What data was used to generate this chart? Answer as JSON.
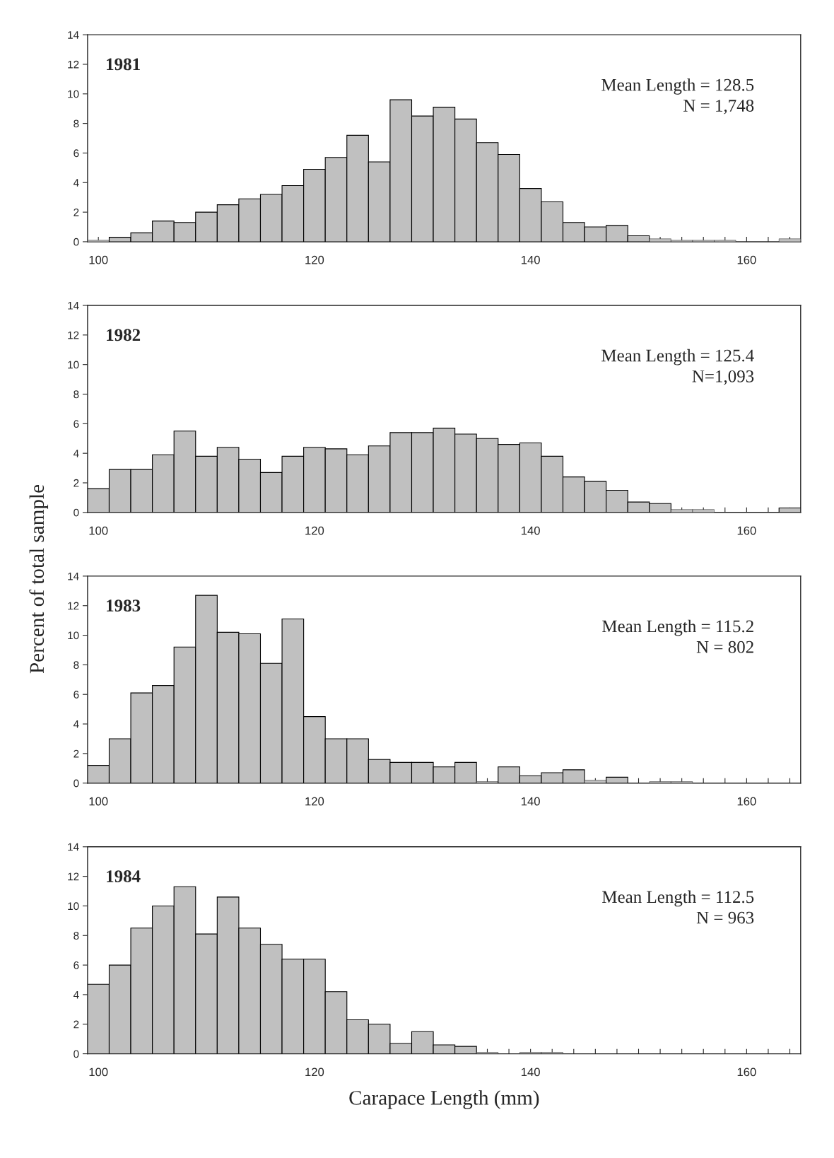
{
  "chart_data": [
    {
      "type": "histogram",
      "title": "1981",
      "annotations": [
        "Mean Length = 128.5",
        "N = 1,748"
      ],
      "bins": [
        99,
        101,
        103,
        105,
        107,
        109,
        111,
        113,
        115,
        117,
        119,
        121,
        123,
        125,
        127,
        129,
        131,
        133,
        135,
        137,
        139,
        141,
        143,
        145,
        147,
        149,
        151,
        153,
        155,
        157,
        159,
        161,
        163,
        165
      ],
      "values": [
        0.1,
        0.3,
        0.6,
        1.4,
        1.3,
        2.0,
        2.5,
        2.9,
        3.2,
        3.8,
        4.9,
        5.7,
        7.2,
        5.4,
        9.6,
        8.5,
        9.1,
        8.3,
        6.7,
        5.9,
        3.6,
        2.7,
        1.3,
        1.0,
        1.1,
        0.4,
        0.2,
        0.1,
        0.1,
        0.1,
        0,
        0,
        0.2
      ],
      "color": "#c0c0c0",
      "xlim": [
        99,
        165
      ],
      "ylim": [
        0,
        14
      ],
      "yticks": [
        0,
        2,
        4,
        6,
        8,
        10,
        12,
        14
      ],
      "xticks": [
        100,
        {
          "value": 102,
          "label": null
        },
        {
          "value": 104,
          "label": null
        },
        {
          "value": 106,
          "label": null
        },
        {
          "value": 108,
          "label": null
        },
        {
          "value": 110,
          "label": null
        },
        {
          "value": 112,
          "label": null
        },
        {
          "value": 114,
          "label": null
        },
        {
          "value": 116,
          "label": null
        },
        {
          "value": 118,
          "label": null
        },
        120,
        {
          "value": 122,
          "label": null
        },
        {
          "value": 124,
          "label": null
        },
        {
          "value": 126,
          "label": null
        },
        {
          "value": 128,
          "label": null
        },
        {
          "value": 130,
          "label": null
        },
        {
          "value": 132,
          "label": null
        },
        {
          "value": 134,
          "label": null
        },
        {
          "value": 136,
          "label": null
        },
        {
          "value": 138,
          "label": null
        },
        140,
        {
          "value": 142,
          "label": null
        },
        {
          "value": 144,
          "label": null
        },
        {
          "value": 146,
          "label": null
        },
        {
          "value": 148,
          "label": null
        },
        {
          "value": 150,
          "label": null
        },
        {
          "value": 152,
          "label": null
        },
        {
          "value": 154,
          "label": null
        },
        {
          "value": 156,
          "label": null
        },
        {
          "value": 158,
          "label": null
        },
        160,
        {
          "value": 162,
          "label": null
        },
        {
          "value": 164,
          "label": null
        }
      ],
      "grid": false,
      "legend": false
    },
    {
      "type": "histogram",
      "title": "1982",
      "annotations": [
        "Mean Length = 125.4",
        "N=1,093"
      ],
      "bins": [
        99,
        101,
        103,
        105,
        107,
        109,
        111,
        113,
        115,
        117,
        119,
        121,
        123,
        125,
        127,
        129,
        131,
        133,
        135,
        137,
        139,
        141,
        143,
        145,
        147,
        149,
        151,
        153,
        155,
        157,
        159,
        161,
        163,
        165
      ],
      "values": [
        1.6,
        2.9,
        2.9,
        3.9,
        5.5,
        3.8,
        4.4,
        3.6,
        2.7,
        3.8,
        4.4,
        4.3,
        3.9,
        4.5,
        5.4,
        5.4,
        5.7,
        5.3,
        5.0,
        4.6,
        4.7,
        3.8,
        2.4,
        2.1,
        1.5,
        0.7,
        0.6,
        0.2,
        0.2,
        0,
        0,
        0,
        0.3
      ],
      "color": "#c0c0c0",
      "xlim": [
        99,
        165
      ],
      "ylim": [
        0,
        14
      ],
      "yticks": [
        0,
        2,
        4,
        6,
        8,
        10,
        12,
        14
      ],
      "xticks": [
        100,
        {
          "value": 102,
          "label": null
        },
        {
          "value": 104,
          "label": null
        },
        {
          "value": 106,
          "label": null
        },
        {
          "value": 108,
          "label": null
        },
        {
          "value": 110,
          "label": null
        },
        {
          "value": 112,
          "label": null
        },
        {
          "value": 114,
          "label": null
        },
        {
          "value": 116,
          "label": null
        },
        {
          "value": 118,
          "label": null
        },
        120,
        {
          "value": 122,
          "label": null
        },
        {
          "value": 124,
          "label": null
        },
        {
          "value": 126,
          "label": null
        },
        {
          "value": 128,
          "label": null
        },
        {
          "value": 130,
          "label": null
        },
        {
          "value": 132,
          "label": null
        },
        {
          "value": 134,
          "label": null
        },
        {
          "value": 136,
          "label": null
        },
        {
          "value": 138,
          "label": null
        },
        140,
        {
          "value": 142,
          "label": null
        },
        {
          "value": 144,
          "label": null
        },
        {
          "value": 146,
          "label": null
        },
        {
          "value": 148,
          "label": null
        },
        {
          "value": 150,
          "label": null
        },
        {
          "value": 152,
          "label": null
        },
        {
          "value": 154,
          "label": null
        },
        {
          "value": 156,
          "label": null
        },
        {
          "value": 158,
          "label": null
        },
        160,
        {
          "value": 162,
          "label": null
        },
        {
          "value": 164,
          "label": null
        }
      ],
      "grid": false,
      "legend": false
    },
    {
      "type": "histogram",
      "title": "1983",
      "ylabel": "Percent of total sample",
      "annotations": [
        "Mean Length = 115.2",
        "N = 802"
      ],
      "bins": [
        99,
        101,
        103,
        105,
        107,
        109,
        111,
        113,
        115,
        117,
        119,
        121,
        123,
        125,
        127,
        129,
        131,
        133,
        135,
        137,
        139,
        141,
        143,
        145,
        147,
        149,
        151,
        153,
        155,
        157,
        159,
        161,
        163,
        165
      ],
      "values": [
        1.2,
        3.0,
        6.1,
        6.6,
        9.2,
        12.7,
        10.2,
        10.1,
        8.1,
        11.1,
        4.5,
        3.0,
        3.0,
        1.6,
        1.4,
        1.4,
        1.1,
        1.4,
        0.1,
        1.1,
        0.5,
        0.7,
        0.9,
        0.2,
        0.4,
        0,
        0.1,
        0.1,
        0,
        0,
        0,
        0,
        0
      ],
      "color": "#c0c0c0",
      "xlim": [
        99,
        165
      ],
      "ylim": [
        0,
        14
      ],
      "yticks": [
        0,
        2,
        4,
        6,
        8,
        10,
        12,
        14
      ],
      "xticks": [
        100,
        {
          "value": 102,
          "label": null
        },
        {
          "value": 104,
          "label": null
        },
        {
          "value": 106,
          "label": null
        },
        {
          "value": 108,
          "label": null
        },
        {
          "value": 110,
          "label": null
        },
        {
          "value": 112,
          "label": null
        },
        {
          "value": 114,
          "label": null
        },
        {
          "value": 116,
          "label": null
        },
        {
          "value": 118,
          "label": null
        },
        120,
        {
          "value": 122,
          "label": null
        },
        {
          "value": 124,
          "label": null
        },
        {
          "value": 126,
          "label": null
        },
        {
          "value": 128,
          "label": null
        },
        {
          "value": 130,
          "label": null
        },
        {
          "value": 132,
          "label": null
        },
        {
          "value": 134,
          "label": null
        },
        {
          "value": 136,
          "label": null
        },
        {
          "value": 138,
          "label": null
        },
        140,
        {
          "value": 142,
          "label": null
        },
        {
          "value": 144,
          "label": null
        },
        {
          "value": 146,
          "label": null
        },
        {
          "value": 148,
          "label": null
        },
        {
          "value": 150,
          "label": null
        },
        {
          "value": 152,
          "label": null
        },
        {
          "value": 154,
          "label": null
        },
        {
          "value": 156,
          "label": null
        },
        {
          "value": 158,
          "label": null
        },
        160,
        {
          "value": 162,
          "label": null
        },
        {
          "value": 164,
          "label": null
        }
      ],
      "grid": false,
      "legend": false
    },
    {
      "type": "histogram",
      "title": "1984",
      "xlabel": "Carapace Length (mm)",
      "annotations": [
        "Mean Length = 112.5",
        "N = 963"
      ],
      "bins": [
        99,
        101,
        103,
        105,
        107,
        109,
        111,
        113,
        115,
        117,
        119,
        121,
        123,
        125,
        127,
        129,
        131,
        133,
        135,
        137,
        139,
        141,
        143,
        145,
        147,
        149,
        151,
        153,
        155,
        157,
        159,
        161,
        163,
        165
      ],
      "values": [
        4.7,
        6.0,
        8.5,
        10.0,
        11.3,
        8.1,
        10.6,
        8.5,
        7.4,
        6.4,
        6.4,
        4.2,
        2.3,
        2.0,
        0.7,
        1.5,
        0.6,
        0.5,
        0.1,
        0,
        0.1,
        0.1,
        0,
        0,
        0,
        0,
        0,
        0,
        0,
        0,
        0,
        0,
        0
      ],
      "color": "#c0c0c0",
      "xlim": [
        99,
        165
      ],
      "ylim": [
        0,
        14
      ],
      "yticks": [
        0,
        2,
        4,
        6,
        8,
        10,
        12,
        14
      ],
      "xticks": [
        100,
        {
          "value": 102,
          "label": null
        },
        {
          "value": 104,
          "label": null
        },
        {
          "value": 106,
          "label": null
        },
        {
          "value": 108,
          "label": null
        },
        {
          "value": 110,
          "label": null
        },
        {
          "value": 112,
          "label": null
        },
        {
          "value": 114,
          "label": null
        },
        {
          "value": 116,
          "label": null
        },
        {
          "value": 118,
          "label": null
        },
        120,
        {
          "value": 122,
          "label": null
        },
        {
          "value": 124,
          "label": null
        },
        {
          "value": 126,
          "label": null
        },
        {
          "value": 128,
          "label": null
        },
        {
          "value": 130,
          "label": null
        },
        {
          "value": 132,
          "label": null
        },
        {
          "value": 134,
          "label": null
        },
        {
          "value": 136,
          "label": null
        },
        {
          "value": 138,
          "label": null
        },
        140,
        {
          "value": 142,
          "label": null
        },
        {
          "value": 144,
          "label": null
        },
        {
          "value": 146,
          "label": null
        },
        {
          "value": 148,
          "label": null
        },
        {
          "value": 150,
          "label": null
        },
        {
          "value": 152,
          "label": null
        },
        {
          "value": 154,
          "label": null
        },
        {
          "value": 156,
          "label": null
        },
        {
          "value": 158,
          "label": null
        },
        160,
        {
          "value": 162,
          "label": null
        },
        {
          "value": 164,
          "label": null
        }
      ],
      "grid": false,
      "legend": false
    }
  ]
}
